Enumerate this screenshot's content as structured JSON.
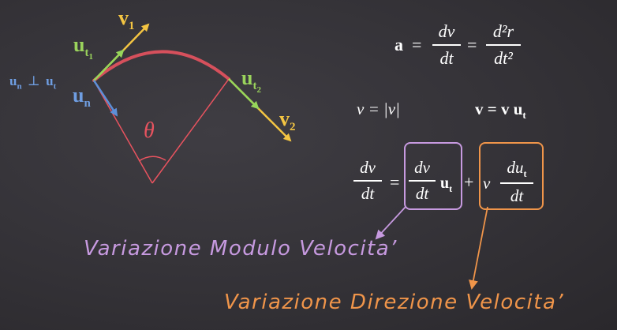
{
  "colors": {
    "background": "#353338",
    "arc": "#e8535f",
    "radius": "#e8535f",
    "ut_vector": "#97d65a",
    "un_vector": "#5d8fd8",
    "v_vector": "#f4c542",
    "un_label": "#6f9ee2",
    "ut_label": "#9ad35c",
    "v_label": "#f4c542",
    "theta": "#e8535f",
    "modulo_box": "#c79ae0",
    "modulo_text": "#c79ae0",
    "direzione_box": "#f0954a",
    "direzione_text": "#f0954a",
    "equations": "#ffffff"
  },
  "diagram": {
    "perp_relation_lhs": "u",
    "perp_relation_lhs_sub": "n",
    "perp_symbol": "⊥",
    "perp_relation_rhs": "u",
    "perp_relation_rhs_sub": "t",
    "un_label": "u",
    "un_sub": "n",
    "ut1_label": "u",
    "ut1_sub": "t",
    "ut1_subsub": "1",
    "v1_label": "v",
    "v1_sub": "1",
    "ut2_label": "u",
    "ut2_sub": "t",
    "ut2_subsub": "2",
    "v2_label": "v",
    "v2_sub": "2",
    "theta": "θ"
  },
  "equations": {
    "accel_lhs": "a",
    "eq1": "=",
    "accel_f1_num": "dv",
    "accel_f1_den": "dt",
    "eq2": "=",
    "accel_f2_num": "d²r",
    "accel_f2_den": "dt²",
    "speed_def": "v = |v|",
    "velocity_def": "v = v u",
    "velocity_def_sub": "t",
    "deriv_lhs_num": "dv",
    "deriv_lhs_den": "dt",
    "deriv_eq": "=",
    "term1_num": "dv",
    "term1_den": "dt",
    "term1_factor": "u",
    "term1_factor_sub": "t",
    "plus": "+",
    "term2_factor": "v",
    "term2_num": "du",
    "term2_num_sub": "t",
    "term2_den": "dt"
  },
  "annotations": {
    "modulo": "Variazione Modulo Velocita’",
    "direzione": "Variazione Direzione Velocita’"
  }
}
